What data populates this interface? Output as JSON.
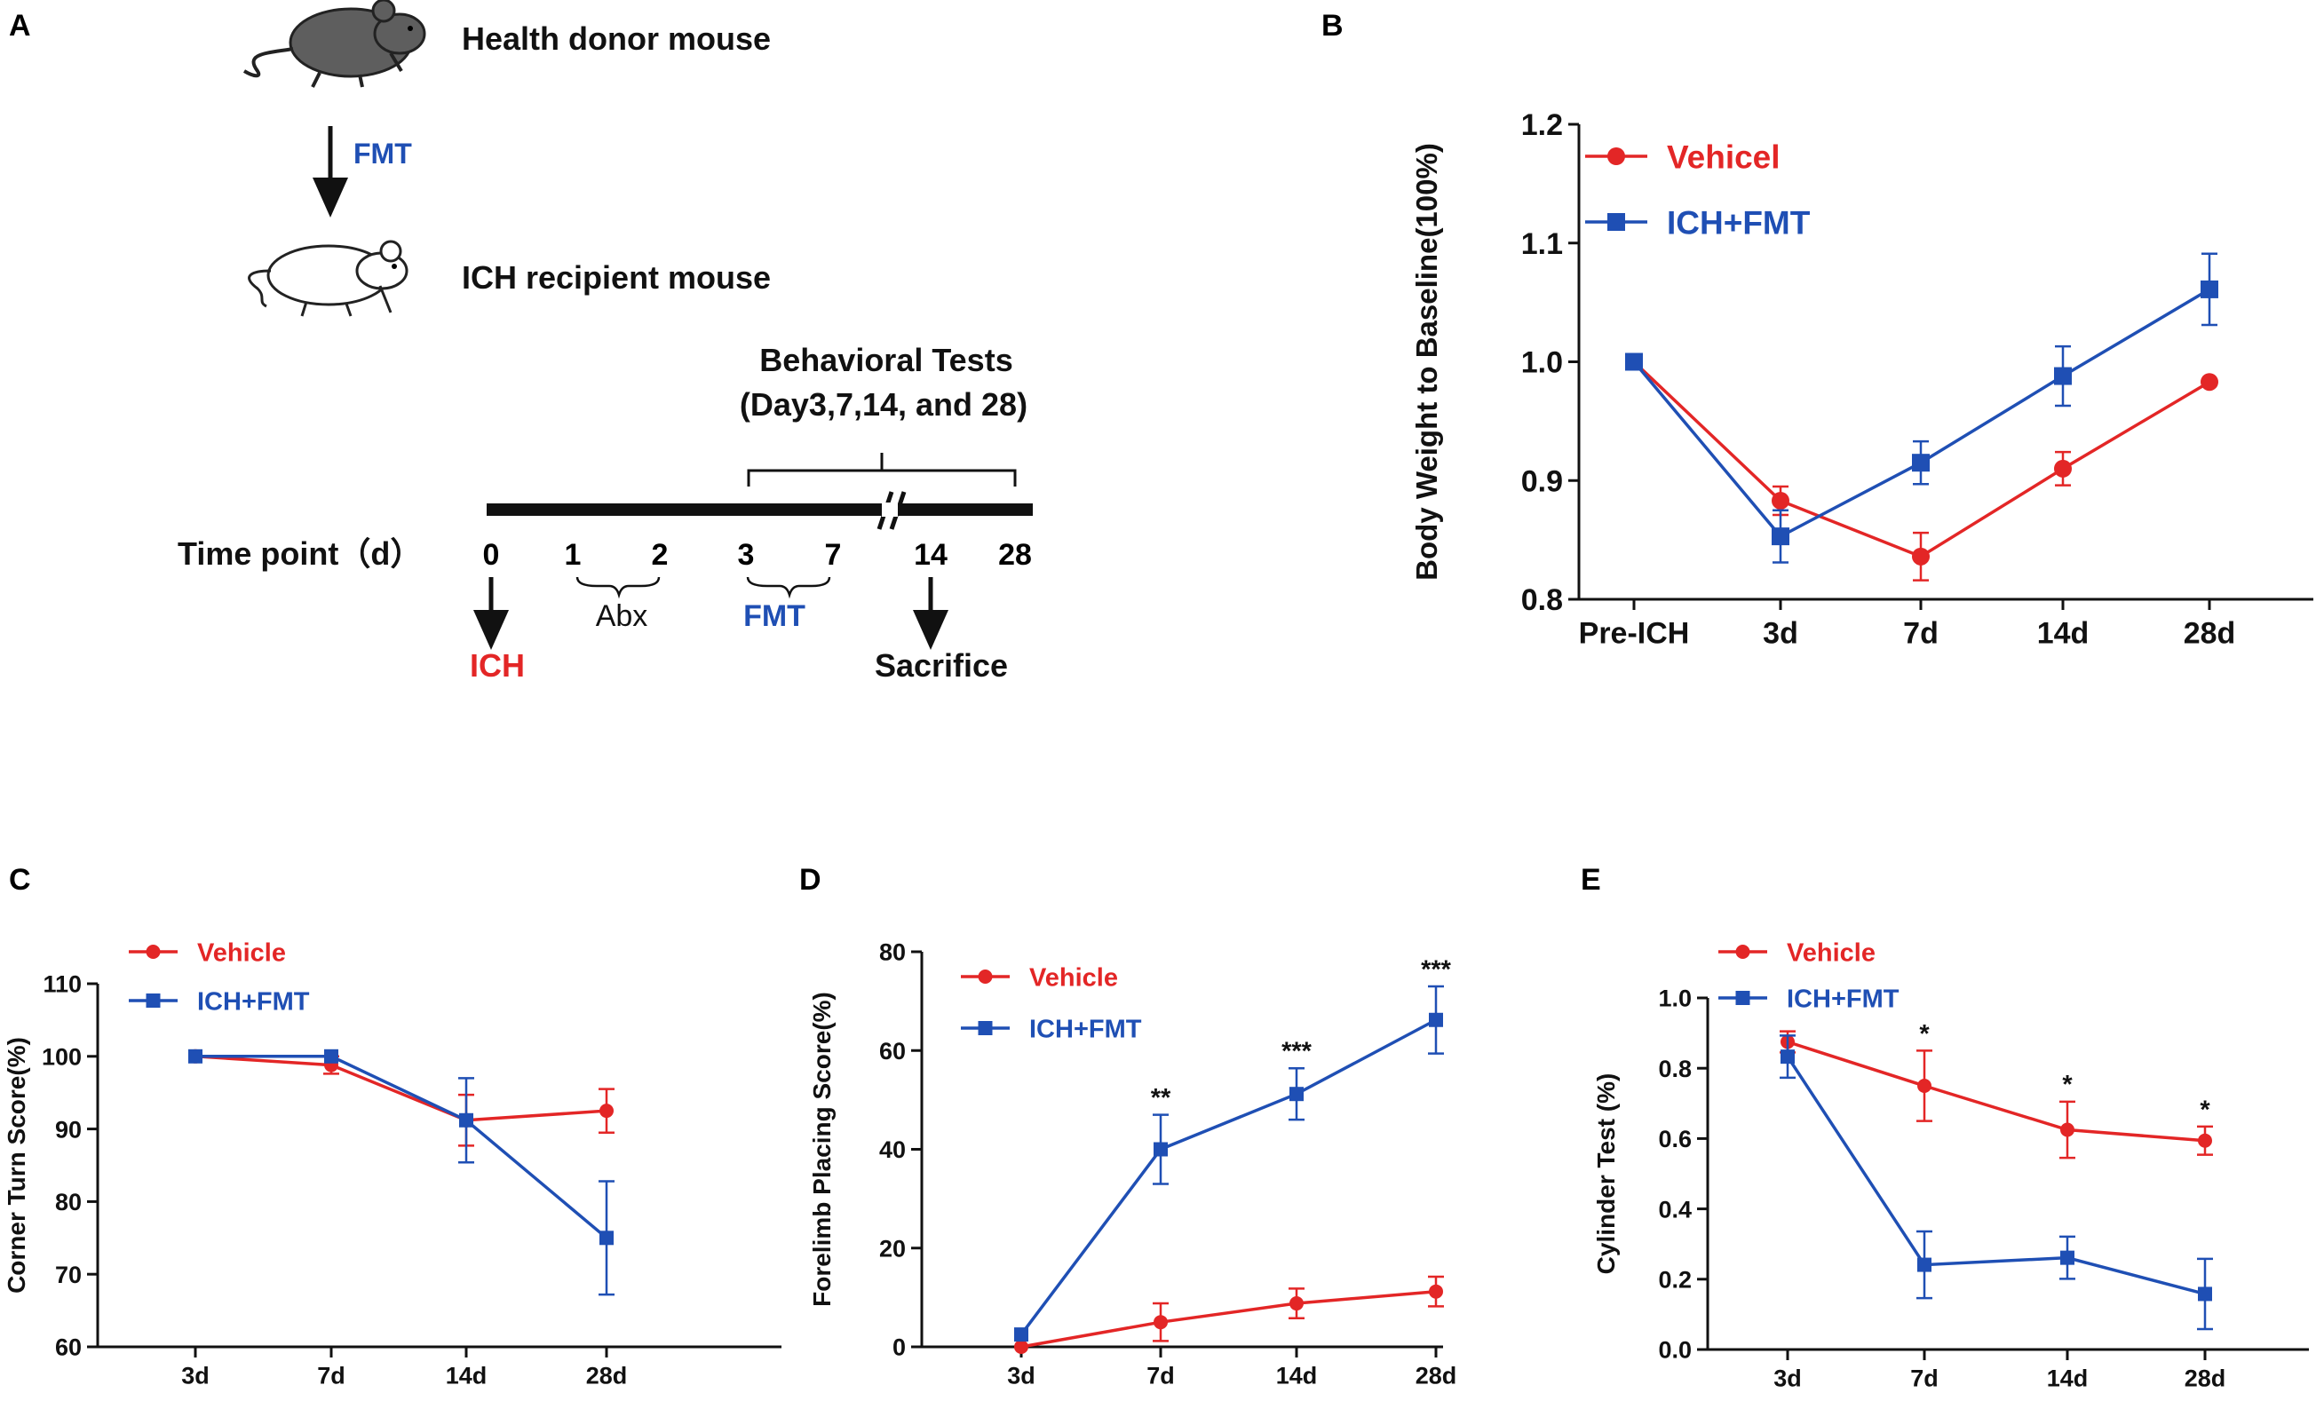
{
  "colors": {
    "red": "#e32626",
    "blue": "#1f4fb4",
    "black": "#111111",
    "gray": "#6b6b6b"
  },
  "panel_labels": {
    "a": "A",
    "b": "B",
    "c": "C",
    "d": "D",
    "e": "E"
  },
  "schematic": {
    "donor": "Health donor mouse",
    "recipient": "ICH recipient mouse",
    "fmt_arrow_label": "FMT",
    "behavioral_title": "Behavioral Tests",
    "behavioral_days": "(Day3,7,14, and 28)",
    "timepoint_label": "Time point（d）",
    "t0": "0",
    "t1": "1",
    "t2": "2",
    "t3": "3",
    "t7": "7",
    "t14": "14",
    "t28": "28",
    "abx": "Abx",
    "fmt_window": "FMT",
    "ich": "ICH",
    "sacrifice": "Sacrifice"
  },
  "chart_data": [
    {
      "id": "B",
      "type": "line",
      "categories": [
        "Pre-ICH",
        "3d",
        "7d",
        "14d",
        "28d"
      ],
      "ylabel": "Body Weight to Baseline(100%)",
      "ylim": [
        0.8,
        1.2
      ],
      "yticks": [
        "0.8",
        "0.9",
        "1.0",
        "1.1",
        "1.2"
      ],
      "series": [
        {
          "name": "Vehicel",
          "color": "red",
          "marker": "circle",
          "values": [
            1.0,
            0.883,
            0.836,
            0.91,
            0.983
          ],
          "errors": [
            0,
            0.012,
            0.02,
            0.014,
            0
          ]
        },
        {
          "name": "ICH+FMT",
          "color": "blue",
          "marker": "square",
          "values": [
            1.0,
            0.853,
            0.915,
            0.988,
            1.061
          ],
          "errors": [
            0,
            0.022,
            0.018,
            0.025,
            0.03
          ]
        }
      ],
      "annotations": [
        "",
        "",
        "",
        "",
        ""
      ]
    },
    {
      "id": "C",
      "type": "line",
      "categories": [
        "3d",
        "7d",
        "14d",
        "28d"
      ],
      "ylabel": "Corner Turn Score(%)",
      "ylim": [
        60,
        110
      ],
      "yticks": [
        "60",
        "70",
        "80",
        "90",
        "100",
        "110"
      ],
      "series": [
        {
          "name": "Vehicle",
          "color": "red",
          "marker": "circle",
          "values": [
            100,
            98.8,
            91.2,
            92.5
          ],
          "errors": [
            0,
            1.2,
            3.5,
            3
          ]
        },
        {
          "name": "ICH+FMT",
          "color": "blue",
          "marker": "square",
          "values": [
            100,
            100,
            91.2,
            75
          ],
          "errors": [
            0,
            0,
            5.8,
            7.8
          ]
        }
      ],
      "annotations": [
        "",
        "",
        "",
        ""
      ]
    },
    {
      "id": "D",
      "type": "line",
      "categories": [
        "3d",
        "7d",
        "14d",
        "28d"
      ],
      "ylabel": "Forelimb Placing Score(%)",
      "ylim": [
        0,
        80
      ],
      "yticks": [
        "0",
        "20",
        "40",
        "60",
        "80"
      ],
      "series": [
        {
          "name": "Vehicle",
          "color": "red",
          "marker": "circle",
          "values": [
            0,
            5,
            8.8,
            11.2
          ],
          "errors": [
            0,
            3.8,
            3,
            3
          ]
        },
        {
          "name": "ICH+FMT",
          "color": "blue",
          "marker": "square",
          "values": [
            2.5,
            40,
            51.2,
            66.2
          ],
          "errors": [
            0,
            7,
            5.2,
            6.8
          ]
        }
      ],
      "annotations": [
        "",
        "**",
        "***",
        "***"
      ]
    },
    {
      "id": "E",
      "type": "line",
      "categories": [
        "3d",
        "7d",
        "14d",
        "28d"
      ],
      "ylabel": "Cylinder Test (%)",
      "ylim": [
        0,
        1.0
      ],
      "yticks": [
        "0.0",
        "0.2",
        "0.4",
        "0.6",
        "0.8",
        "1.0"
      ],
      "series": [
        {
          "name": "Vehicle",
          "color": "red",
          "marker": "circle",
          "values": [
            0.875,
            0.75,
            0.625,
            0.594
          ],
          "errors": [
            0.03,
            0.1,
            0.08,
            0.04
          ]
        },
        {
          "name": "ICH+FMT",
          "color": "blue",
          "marker": "square",
          "values": [
            0.833,
            0.241,
            0.261,
            0.158
          ],
          "errors": [
            0.06,
            0.095,
            0.06,
            0.1
          ]
        }
      ],
      "annotations": [
        "",
        "*",
        "*",
        "*"
      ]
    }
  ]
}
